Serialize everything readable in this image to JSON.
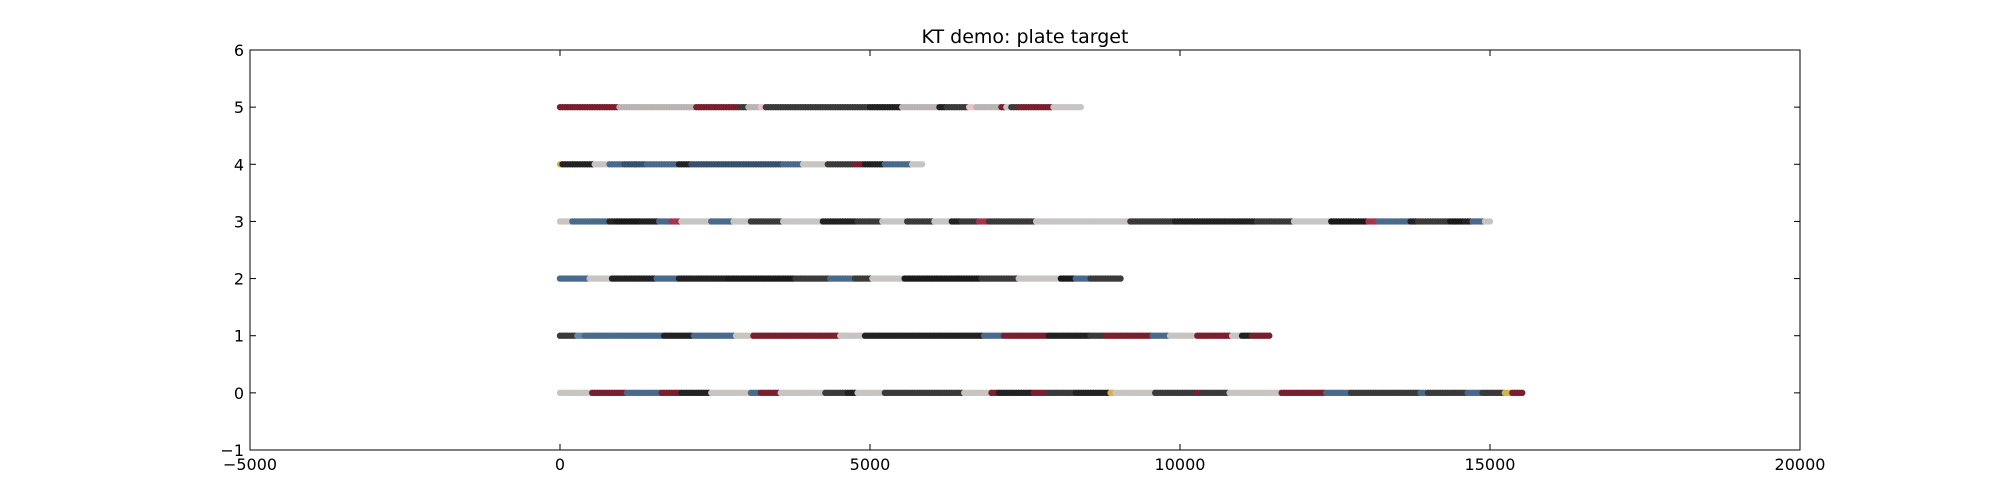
{
  "chart_data": {
    "type": "scatter",
    "title": "KT demo: plate target",
    "xlabel": "",
    "ylabel": "",
    "xlim": [
      -5000,
      20000
    ],
    "ylim": [
      -1,
      6
    ],
    "xticks": [
      -5000,
      0,
      5000,
      10000,
      15000,
      20000
    ],
    "yticks": [
      -1,
      0,
      1,
      2,
      3,
      4,
      5,
      6
    ],
    "xtick_labels": [
      "−5000",
      "0",
      "5000",
      "10000",
      "15000",
      "20000"
    ],
    "ytick_labels": [
      "−1",
      "0",
      "1",
      "2",
      "3",
      "4",
      "5",
      "6"
    ],
    "grid": false,
    "legend": "none",
    "point_colors": [
      "#222222",
      "#1a1a1a",
      "#3a3a3a",
      "#c8c4c2",
      "#b9b3b1",
      "#7a1f2e",
      "#a3354a",
      "#d07a8a",
      "#e8c4c8",
      "#4a6a8c",
      "#36506e",
      "#6a86a8",
      "#d4b050",
      "#e8d38a",
      "#1f3fa8"
    ],
    "series": [
      {
        "y": 0,
        "x_start": 0,
        "x_end": 15550,
        "dominant": [
          "#222222",
          "#c8c4c2",
          "#3a3a3a",
          "#7a1f2e",
          "#4a6a8c"
        ],
        "accent": [
          "#d4b050",
          "#e8d38a",
          "#1f3fa8"
        ]
      },
      {
        "y": 1,
        "x_start": 0,
        "x_end": 11450,
        "dominant": [
          "#222222",
          "#c8c4c2",
          "#7a1f2e",
          "#4a6a8c",
          "#3a3a3a"
        ],
        "accent": [
          "#6a86a8"
        ]
      },
      {
        "y": 2,
        "x_start": 0,
        "x_end": 9050,
        "dominant": [
          "#1a1a1a",
          "#222222",
          "#c8c4c2",
          "#4a6a8c",
          "#3a3a3a"
        ],
        "accent": [
          "#a3354a",
          "#e8c4c8"
        ]
      },
      {
        "y": 3,
        "x_start": 0,
        "x_end": 15000,
        "dominant": [
          "#222222",
          "#1a1a1a",
          "#3a3a3a",
          "#c8c4c2",
          "#4a6a8c"
        ],
        "accent": [
          "#a3354a",
          "#e8d38a"
        ]
      },
      {
        "y": 4,
        "x_start": 0,
        "x_end": 5850,
        "dominant": [
          "#4a6a8c",
          "#36506e",
          "#c8c4c2",
          "#3a3a3a",
          "#222222"
        ],
        "accent": [
          "#d4b050",
          "#7a1f2e"
        ]
      },
      {
        "y": 5,
        "x_start": 0,
        "x_end": 8400,
        "dominant": [
          "#c8c4c2",
          "#3a3a3a",
          "#7a1f2e",
          "#222222",
          "#b9b3b1"
        ],
        "accent": [
          "#a3354a",
          "#d4b050",
          "#e8c4c8"
        ]
      }
    ]
  }
}
